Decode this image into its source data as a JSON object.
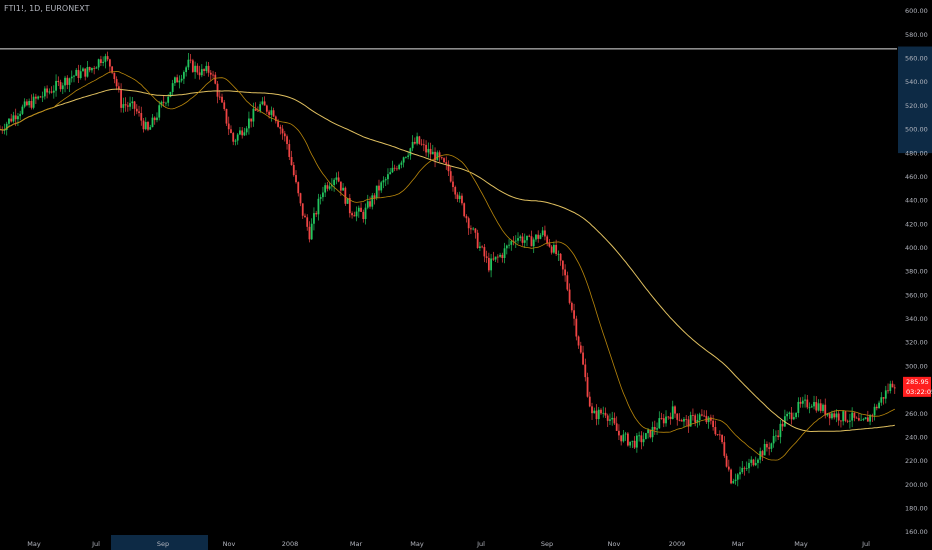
{
  "header": {
    "symbol": "FTI1!, 1D, EURONEXT"
  },
  "colors": {
    "up": "#22c55e",
    "down": "#ef4444",
    "ma_fast": "#b8860b",
    "ma_slow": "#e0c060",
    "bg": "#000000",
    "price_tag": "#ff1f1f"
  },
  "chart_data": {
    "type": "candlestick",
    "y_axis": {
      "min": 160,
      "max": 600,
      "ticks": [
        "160.00",
        "180.00",
        "200.00",
        "220.00",
        "240.00",
        "260.00",
        "280.00",
        "300.00",
        "320.00",
        "340.00",
        "360.00",
        "380.00",
        "400.00",
        "420.00",
        "440.00",
        "460.00",
        "480.00",
        "500.00",
        "520.00",
        "540.00",
        "560.00",
        "580.00",
        "600.00"
      ]
    },
    "x_axis": {
      "labels": [
        "May",
        "Jul",
        "Sep",
        "Nov",
        "2008",
        "Mar",
        "May",
        "Jul",
        "Sep",
        "Nov",
        "2009",
        "Mar",
        "May",
        "Jul"
      ],
      "highlighted_range": "Sep"
    },
    "y_axis_highlight_range": [
      480,
      570
    ],
    "horizontal_line": 568,
    "last_price": "285.95",
    "countdown": "03:22:05",
    "price_path": [
      {
        "t": 0,
        "v": 500
      },
      {
        "t": 4,
        "v": 515
      },
      {
        "t": 8,
        "v": 525
      },
      {
        "t": 12,
        "v": 535
      },
      {
        "t": 16,
        "v": 545
      },
      {
        "t": 20,
        "v": 550
      },
      {
        "t": 23,
        "v": 562
      },
      {
        "t": 25,
        "v": 552
      },
      {
        "t": 27,
        "v": 522
      },
      {
        "t": 30,
        "v": 518
      },
      {
        "t": 33,
        "v": 498
      },
      {
        "t": 36,
        "v": 520
      },
      {
        "t": 39,
        "v": 540
      },
      {
        "t": 42,
        "v": 555
      },
      {
        "t": 45,
        "v": 548
      },
      {
        "t": 47,
        "v": 550
      },
      {
        "t": 49,
        "v": 525
      },
      {
        "t": 52,
        "v": 490
      },
      {
        "t": 55,
        "v": 505
      },
      {
        "t": 58,
        "v": 520
      },
      {
        "t": 61,
        "v": 515
      },
      {
        "t": 64,
        "v": 488
      },
      {
        "t": 67,
        "v": 435
      },
      {
        "t": 69,
        "v": 412
      },
      {
        "t": 72,
        "v": 450
      },
      {
        "t": 75,
        "v": 462
      },
      {
        "t": 78,
        "v": 432
      },
      {
        "t": 81,
        "v": 428
      },
      {
        "t": 84,
        "v": 448
      },
      {
        "t": 87,
        "v": 462
      },
      {
        "t": 90,
        "v": 478
      },
      {
        "t": 93,
        "v": 490
      },
      {
        "t": 95,
        "v": 482
      },
      {
        "t": 97,
        "v": 478
      },
      {
        "t": 100,
        "v": 465
      },
      {
        "t": 103,
        "v": 435
      },
      {
        "t": 106,
        "v": 408
      },
      {
        "t": 109,
        "v": 385
      },
      {
        "t": 112,
        "v": 395
      },
      {
        "t": 115,
        "v": 410
      },
      {
        "t": 118,
        "v": 405
      },
      {
        "t": 121,
        "v": 412
      },
      {
        "t": 124,
        "v": 395
      },
      {
        "t": 126,
        "v": 375
      },
      {
        "t": 128,
        "v": 340
      },
      {
        "t": 130,
        "v": 300
      },
      {
        "t": 132,
        "v": 258
      },
      {
        "t": 135,
        "v": 262
      },
      {
        "t": 138,
        "v": 242
      },
      {
        "t": 141,
        "v": 235
      },
      {
        "t": 144,
        "v": 240
      },
      {
        "t": 147,
        "v": 252
      },
      {
        "t": 150,
        "v": 262
      },
      {
        "t": 153,
        "v": 252
      },
      {
        "t": 156,
        "v": 258
      },
      {
        "t": 159,
        "v": 250
      },
      {
        "t": 161,
        "v": 235
      },
      {
        "t": 163,
        "v": 205
      },
      {
        "t": 166,
        "v": 212
      },
      {
        "t": 169,
        "v": 225
      },
      {
        "t": 172,
        "v": 235
      },
      {
        "t": 175,
        "v": 255
      },
      {
        "t": 178,
        "v": 265
      },
      {
        "t": 181,
        "v": 270
      },
      {
        "t": 184,
        "v": 262
      },
      {
        "t": 187,
        "v": 258
      },
      {
        "t": 190,
        "v": 256
      },
      {
        "t": 192,
        "v": 250
      },
      {
        "t": 194,
        "v": 258
      },
      {
        "t": 197,
        "v": 275
      },
      {
        "t": 199,
        "v": 286
      }
    ]
  }
}
